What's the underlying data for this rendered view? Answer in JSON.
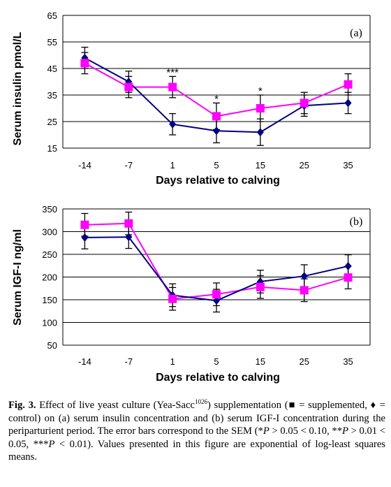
{
  "chart_data": [
    {
      "panel": "(a)",
      "type": "line",
      "ylabel": "Serum insulin pmol/L",
      "xlabel": "Days relative to calving",
      "categories": [
        "-14",
        "-7",
        "1",
        "5",
        "15",
        "25",
        "35"
      ],
      "y_ticks": [
        "15",
        "25",
        "35",
        "45",
        "55",
        "65"
      ],
      "ylim": [
        15,
        65
      ],
      "grid": "horizontal",
      "series": [
        {
          "key": "supplemented",
          "marker": "square",
          "color": "#ff00ff",
          "values": [
            47,
            38,
            38,
            27,
            30,
            32,
            39
          ],
          "sem": [
            4,
            4,
            4,
            5,
            5,
            4,
            4
          ]
        },
        {
          "key": "control",
          "marker": "diamond",
          "color": "#000080",
          "values": [
            49,
            40,
            24,
            21.5,
            21,
            31,
            32
          ],
          "sem": [
            4,
            4,
            4,
            4.5,
            5,
            4,
            4
          ]
        }
      ],
      "annotations": [
        {
          "category": "1",
          "text": "***"
        },
        {
          "category": "5",
          "text": "*"
        },
        {
          "category": "15",
          "text": "*"
        }
      ]
    },
    {
      "panel": "(b)",
      "type": "line",
      "ylabel": "Serum IGF-I ng/ml",
      "xlabel": "Days relative to calving",
      "categories": [
        "-14",
        "-7",
        "1",
        "5",
        "15",
        "25",
        "35"
      ],
      "y_ticks": [
        "50",
        "100",
        "150",
        "200",
        "250",
        "300",
        "350"
      ],
      "ylim": [
        50,
        350
      ],
      "grid": "horizontal",
      "series": [
        {
          "key": "supplemented",
          "marker": "square",
          "color": "#ff00ff",
          "values": [
            315,
            318,
            152,
            162,
            178,
            171,
            199
          ],
          "sem": [
            25,
            25,
            25,
            25,
            25,
            25,
            25
          ]
        },
        {
          "key": "control",
          "marker": "diamond",
          "color": "#000080",
          "values": [
            287,
            288,
            160,
            148,
            190,
            202,
            224
          ],
          "sem": [
            25,
            25,
            25,
            25,
            25,
            25,
            25
          ]
        }
      ],
      "annotations": []
    }
  ],
  "caption": {
    "fig_label": "Fig. 3.",
    "text_1": "Effect of live yeast culture (Yea-Sacc",
    "superscript": "1026",
    "text_2": ") supplementation (",
    "square_symbol": "■",
    "text_3": " = supplemented, ",
    "diamond_symbol": "♦",
    "text_4": " = control) on (a) serum insulin concentration and (b) serum IGF-I concentration during the periparturient period. The error bars correspond to the SEM (*",
    "p1": "P",
    "text_5": " > 0.05 < 0.10, **",
    "p2": "P",
    "text_6": " > 0.01 < 0.05, ***",
    "p3": "P",
    "text_7": " < 0.01). Values presented in this figure are exponential of log-least squares means."
  }
}
